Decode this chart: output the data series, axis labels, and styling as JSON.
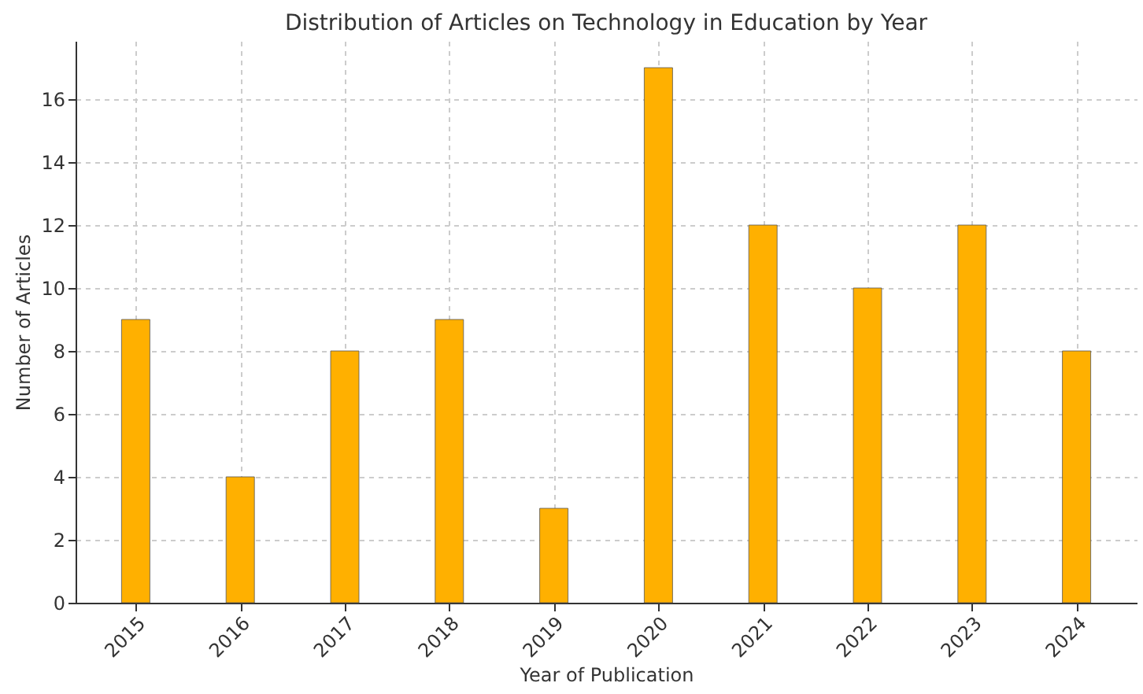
{
  "chart_data": {
    "type": "bar",
    "title": "Distribution of Articles on Technology in Education by Year",
    "xlabel": "Year of Publication",
    "ylabel": "Number of Articles",
    "categories": [
      "2015",
      "2016",
      "2017",
      "2018",
      "2019",
      "2020",
      "2021",
      "2022",
      "2023",
      "2024"
    ],
    "values": [
      9,
      4,
      8,
      9,
      3,
      17,
      12,
      10,
      12,
      8
    ],
    "color": "#ffb000",
    "ylim": [
      0,
      17.85
    ],
    "yticks": [
      0,
      2,
      4,
      6,
      8,
      10,
      12,
      14,
      16
    ],
    "grid": true
  }
}
